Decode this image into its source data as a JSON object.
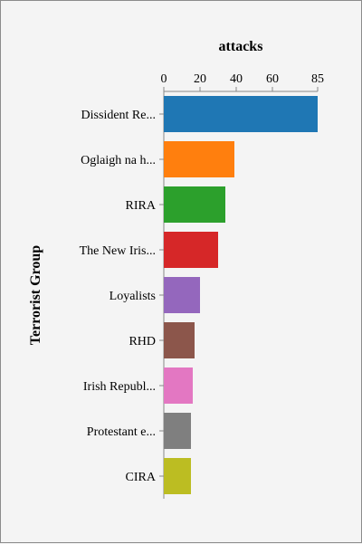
{
  "chart_data": {
    "type": "bar",
    "orientation": "horizontal",
    "title": "",
    "xlabel": "attacks",
    "ylabel": "Terrorist Group",
    "x_axis_position": "top",
    "xlim": [
      0,
      85
    ],
    "xticks": [
      0,
      20,
      40,
      60,
      85
    ],
    "grid": false,
    "categories": [
      "Dissident Re...",
      "Oglaigh na h...",
      "RIRA",
      "The New Iris...",
      "Loyalists",
      "RHD",
      "Irish Republ...",
      "Protestant e...",
      "CIRA"
    ],
    "values": [
      85,
      39,
      34,
      30,
      20,
      17,
      16,
      15,
      15
    ],
    "colors": [
      "#1f77b4",
      "#ff7f0e",
      "#2ca02c",
      "#d62728",
      "#9467bd",
      "#8c564b",
      "#e377c2",
      "#7f7f7f",
      "#bcbd22"
    ]
  }
}
